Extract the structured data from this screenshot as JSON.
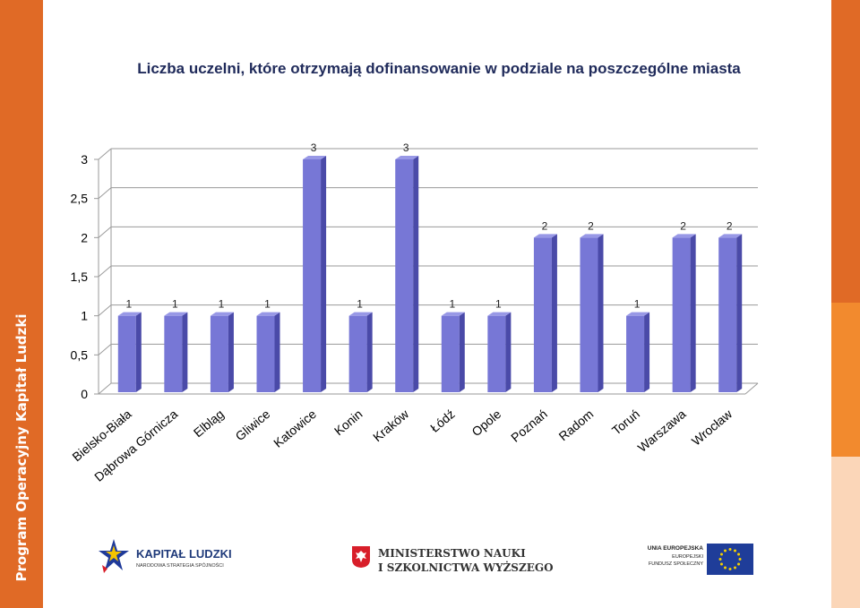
{
  "sidebar": {
    "text": "Program Operacyjny Kapitał Ludzki"
  },
  "chart_data": {
    "type": "bar",
    "title": "Liczba uczelni, które otrzymają dofinansowanie w podziale na poszczególne miasta",
    "categories": [
      "Bielsko-Biała",
      "Dąbrowa Górnicza",
      "Elbląg",
      "Gliwice",
      "Katowice",
      "Konin",
      "Kraków",
      "Łódź",
      "Opole",
      "Poznań",
      "Radom",
      "Toruń",
      "Warszawa",
      "Wrocław"
    ],
    "series": [
      {
        "values": [
          1,
          1,
          1,
          1,
          3,
          1,
          3,
          1,
          1,
          2,
          2,
          1,
          2,
          2
        ],
        "color": "#7777d6"
      }
    ],
    "value_labels": [
      "1",
      "1",
      "1",
      "1",
      "3",
      "1",
      "3",
      "1",
      "1",
      "2",
      "2",
      "1",
      "2",
      "2"
    ],
    "yticks": [
      0,
      0.5,
      1,
      1.5,
      2,
      2.5,
      3
    ],
    "ytick_labels": [
      "0",
      "0,5",
      "1",
      "1,5",
      "2",
      "2,5",
      "3"
    ],
    "ylim": [
      0,
      3
    ],
    "grid": true,
    "style": "3d-columns"
  },
  "logos": {
    "kapital": {
      "name": "KAPITAŁ LUDZKI",
      "sub": "NARODOWA STRATEGIA SPÓJNOŚCI"
    },
    "ministerstwo": {
      "line1": "MINISTERSTWO NAUKI",
      "line2": "I SZKOLNICTWA WYŻSZEGO"
    },
    "ue": {
      "line1": "UNIA EUROPEJSKA",
      "line2": "EUROPEJSKI",
      "line3": "FUNDUSZ SPOŁECZNY"
    }
  }
}
